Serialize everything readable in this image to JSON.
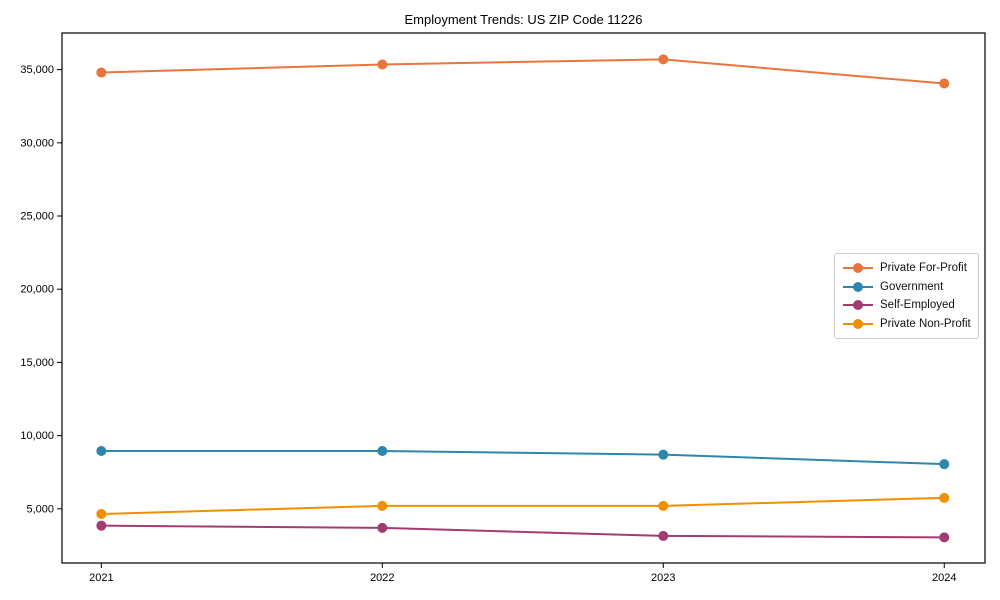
{
  "chart_data": {
    "type": "line",
    "title": "Employment Trends: US ZIP Code 11226",
    "xlabel": "",
    "ylabel": "",
    "categories": [
      "2021",
      "2022",
      "2023",
      "2024"
    ],
    "x": [
      2021,
      2022,
      2023,
      2024
    ],
    "series": [
      {
        "name": "Private For-Profit",
        "color": "#E8763C",
        "values": [
          34800,
          35350,
          35700,
          34050
        ]
      },
      {
        "name": "Government",
        "color": "#2E86AB",
        "values": [
          8950,
          8950,
          8700,
          8050
        ]
      },
      {
        "name": "Self-Employed",
        "color": "#A23B72",
        "values": [
          3850,
          3700,
          3150,
          3050
        ]
      },
      {
        "name": "Private Non-Profit",
        "color": "#F18F01",
        "values": [
          4650,
          5200,
          5200,
          5750
        ]
      }
    ],
    "xlim": [
      2020.86,
      2024.145
    ],
    "ylim": [
      1300,
      37500
    ],
    "yticks": [
      5000,
      10000,
      15000,
      20000,
      25000,
      30000,
      35000
    ],
    "ytick_labels": [
      "5,000",
      "10,000",
      "15,000",
      "20,000",
      "25,000",
      "30,000",
      "35,000"
    ],
    "grid": false,
    "legend_position": "center-right",
    "marker": "circle"
  }
}
